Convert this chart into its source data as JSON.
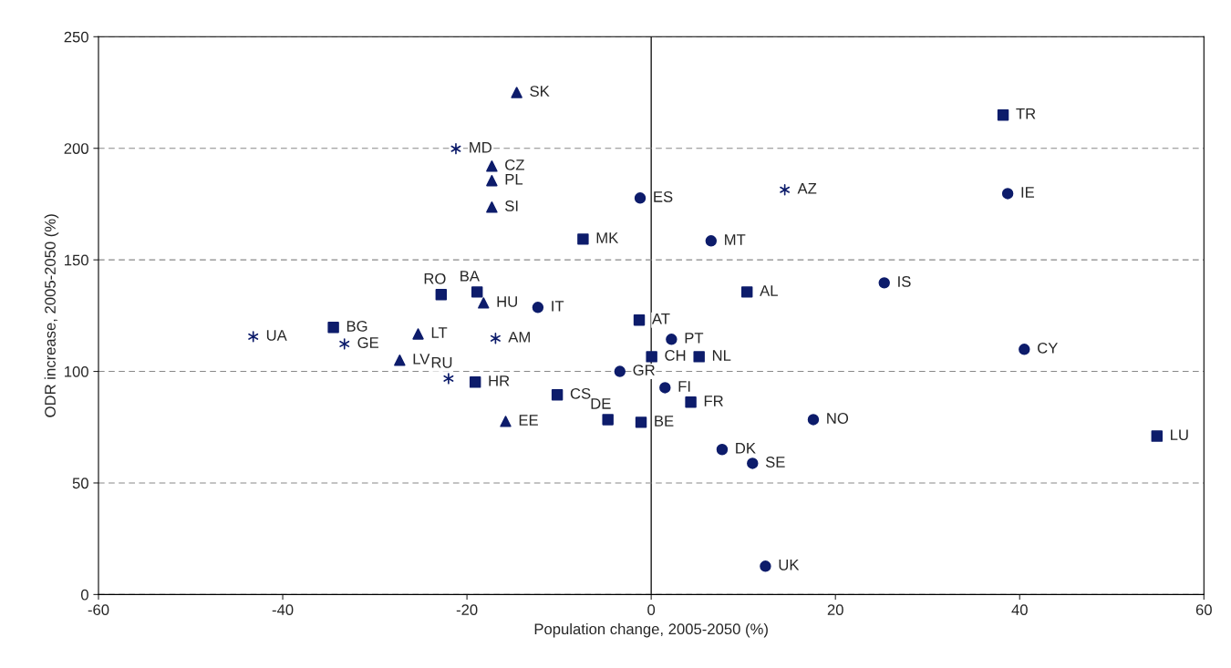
{
  "chart_data": {
    "type": "scatter",
    "xlabel": "Population change, 2005-2050 (%)",
    "ylabel": "ODR increase, 2005-2050 (%)",
    "xlim": [
      -60,
      60
    ],
    "xticks": [
      -60,
      -40,
      -20,
      0,
      20,
      40,
      60
    ],
    "ylim": [
      0,
      250
    ],
    "yticks": [
      0,
      50,
      100,
      150,
      200,
      250
    ],
    "grid": "y",
    "ref_lines": [
      {
        "axis": "x",
        "value": 0,
        "color": "#000000"
      }
    ],
    "series": [
      {
        "color": "#0d1c6b",
        "marker": "triangle",
        "x": [
          -14.6,
          -17.3,
          -17.3,
          -17.3,
          -18.2,
          -25.3,
          -27.3,
          -15.8
        ],
        "values": [
          225,
          192,
          185.5,
          173.6,
          130.7,
          116.8,
          105,
          77.6
        ]
      },
      {
        "color": "#0d1c6b",
        "marker": "square",
        "x": [
          38.2,
          -7.4,
          -22.8,
          -18.9,
          10.4,
          -34.5,
          -19.1,
          -10.2
        ],
        "values": [
          214.9,
          159.3,
          134.4,
          135.6,
          135.6,
          119.7,
          95.2,
          89.5
        ]
      },
      {
        "color": "#0d1c6b",
        "marker": "cross",
        "x": [
          -21.2,
          14.5,
          -43.2,
          -33.3,
          -16.9,
          -22.0
        ],
        "values": [
          199.8,
          181.4,
          115.6,
          112.3,
          114.8,
          96.8
        ]
      },
      {
        "color": "#0d1c6b",
        "marker": "circle",
        "x": [
          -1.2,
          6.5,
          -12.3,
          2.2,
          40.5,
          -3.4
        ],
        "values": [
          177.7,
          158.5,
          128.7,
          114.4,
          109.9,
          100
        ]
      },
      {
        "color": "#0d1c6b",
        "marker": "circle",
        "x": [
          38.7,
          25.3,
          1.5,
          17.6,
          7.7,
          11.0,
          12.4
        ],
        "values": [
          179.7,
          139.7,
          92.7,
          78.4,
          65,
          58.8,
          12.7
        ]
      },
      {
        "color": "#0d1c6b",
        "marker": "square",
        "x": [
          -1.3,
          0.05,
          5.2,
          4.3,
          -4.7,
          -1.1,
          54.9
        ],
        "values": [
          123,
          106.6,
          106.6,
          86.2,
          78.4,
          77.2,
          71
        ]
      }
    ],
    "annotations": [
      {
        "text": "SK",
        "x": -14.6,
        "y": 225
      },
      {
        "text": "CZ",
        "x": -17.3,
        "y": 192
      },
      {
        "text": "PL",
        "x": -17.3,
        "y": 185.5
      },
      {
        "text": "SI",
        "x": -17.3,
        "y": 173.6
      },
      {
        "text": "HU",
        "x": -18.2,
        "y": 130.7
      },
      {
        "text": "LT",
        "x": -25.3,
        "y": 116.8
      },
      {
        "text": "LV",
        "x": -27.3,
        "y": 105
      },
      {
        "text": "EE",
        "x": -15.8,
        "y": 77.6
      },
      {
        "text": "TR",
        "x": 38.2,
        "y": 214.9
      },
      {
        "text": "MK",
        "x": -7.4,
        "y": 159.3
      },
      {
        "text": "RO",
        "x": -22.8,
        "y": 134.4
      },
      {
        "text": "BA",
        "x": -18.9,
        "y": 135.6
      },
      {
        "text": "AL",
        "x": 10.4,
        "y": 135.6
      },
      {
        "text": "BG",
        "x": -34.5,
        "y": 119.7
      },
      {
        "text": "HR",
        "x": -19.1,
        "y": 95.2
      },
      {
        "text": "CS",
        "x": -10.2,
        "y": 89.5
      },
      {
        "text": "MD",
        "x": -21.2,
        "y": 199.8
      },
      {
        "text": "AZ",
        "x": 14.5,
        "y": 181.4
      },
      {
        "text": "UA",
        "x": -43.2,
        "y": 115.6
      },
      {
        "text": "GE",
        "x": -33.3,
        "y": 112.3
      },
      {
        "text": "AM",
        "x": -16.9,
        "y": 114.8
      },
      {
        "text": "RU",
        "x": -22.0,
        "y": 96.8
      },
      {
        "text": "ES",
        "x": -1.2,
        "y": 177.7
      },
      {
        "text": "MT",
        "x": 6.5,
        "y": 158.5
      },
      {
        "text": "IT",
        "x": -12.3,
        "y": 128.7
      },
      {
        "text": "PT",
        "x": 2.2,
        "y": 114.4
      },
      {
        "text": "CY",
        "x": 40.5,
        "y": 109.9
      },
      {
        "text": "GR",
        "x": -3.4,
        "y": 100
      },
      {
        "text": "IE",
        "x": 38.7,
        "y": 179.7
      },
      {
        "text": "IS",
        "x": 25.3,
        "y": 139.7
      },
      {
        "text": "FI",
        "x": 1.5,
        "y": 92.7
      },
      {
        "text": "NO",
        "x": 17.6,
        "y": 78.4
      },
      {
        "text": "DK",
        "x": 7.7,
        "y": 65
      },
      {
        "text": "SE",
        "x": 11.0,
        "y": 58.8
      },
      {
        "text": "UK",
        "x": 12.4,
        "y": 12.7
      },
      {
        "text": "AT",
        "x": -1.3,
        "y": 123
      },
      {
        "text": "CH",
        "x": 0.05,
        "y": 106.6
      },
      {
        "text": "NL",
        "x": 5.2,
        "y": 106.6
      },
      {
        "text": "FR",
        "x": 4.3,
        "y": 86.2
      },
      {
        "text": "DE",
        "x": -4.7,
        "y": 78.4
      },
      {
        "text": "BE",
        "x": -1.1,
        "y": 77.2
      },
      {
        "text": "LU",
        "x": 54.9,
        "y": 71
      }
    ]
  }
}
